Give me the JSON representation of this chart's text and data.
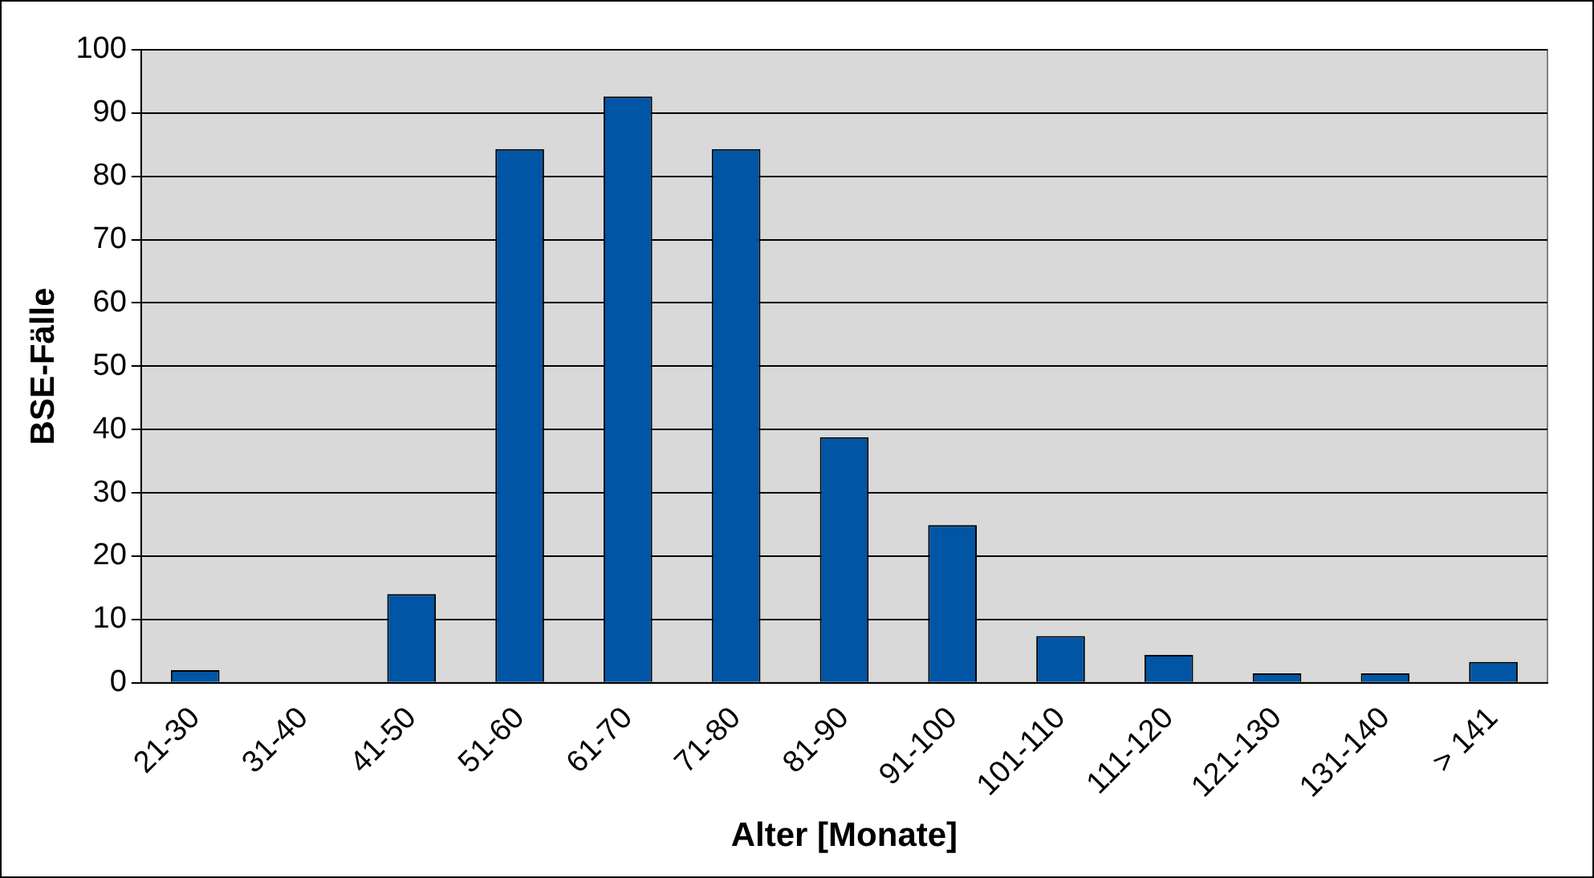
{
  "chart_data": {
    "type": "bar",
    "xlabel": "Alter [Monate]",
    "ylabel": "BSE-Fälle",
    "categories": [
      "21-30",
      "31-40",
      "41-50",
      "51-60",
      "61-70",
      "71-80",
      "81-90",
      "91-100",
      "101-110",
      "111-120",
      "121-130",
      "131-140",
      "> 141"
    ],
    "values": [
      2,
      0,
      14,
      84.3,
      92.6,
      84.3,
      38.8,
      24.9,
      7.4,
      4.4,
      1.5,
      1.5,
      3.3
    ],
    "color": "#0055a5",
    "ylim": [
      0,
      100
    ],
    "yticks": [
      0,
      10,
      20,
      30,
      40,
      50,
      60,
      70,
      80,
      90,
      100
    ],
    "grid": "y",
    "legend": false
  }
}
